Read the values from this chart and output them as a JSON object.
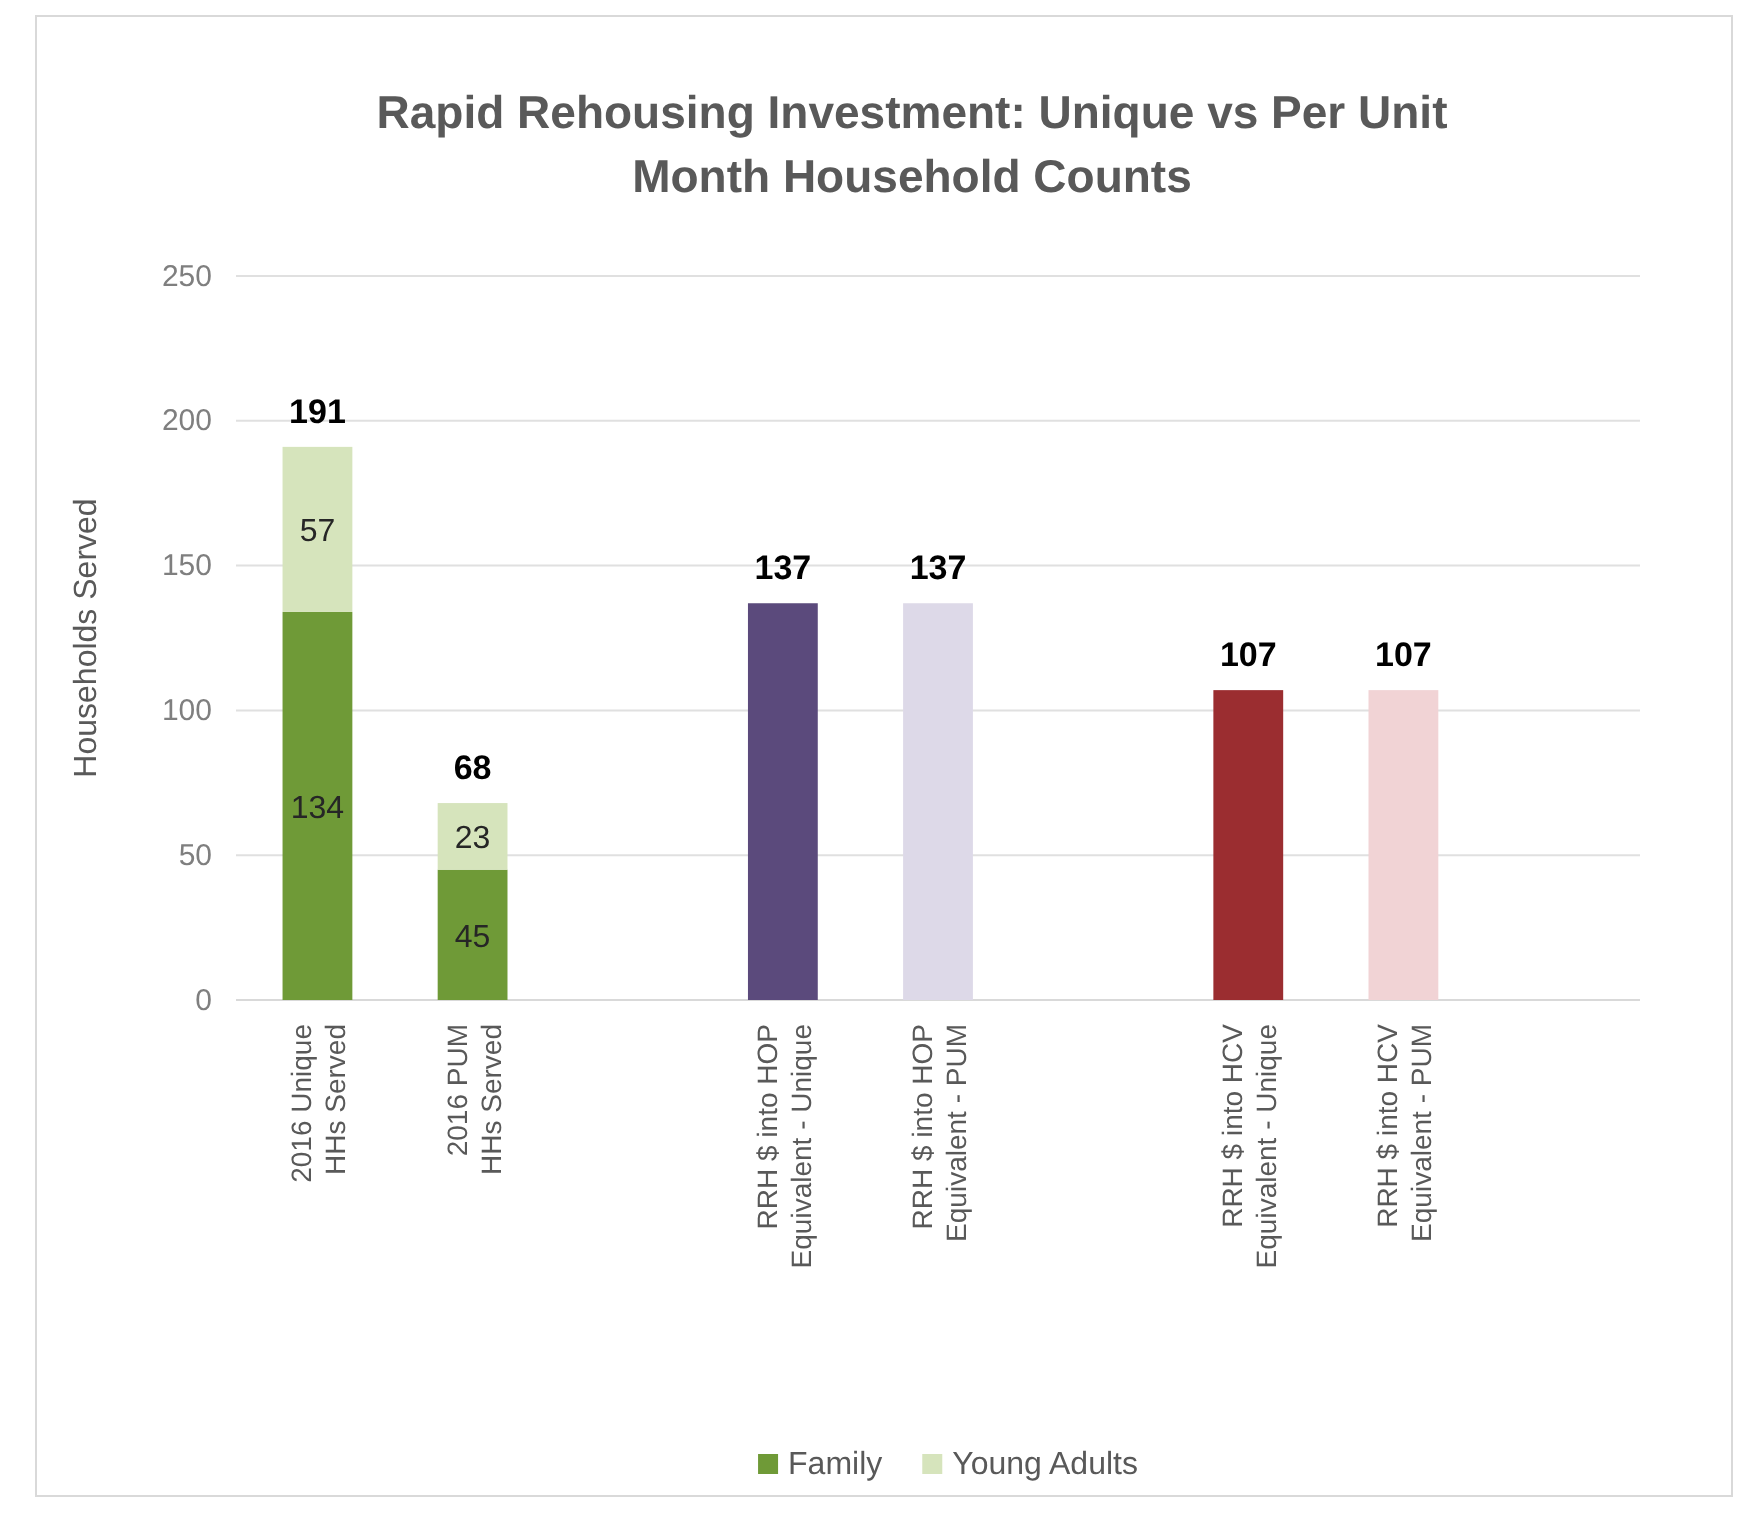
{
  "chart_data": {
    "type": "bar",
    "title": "Rapid Rehousing Investment: Unique vs Per Unit Month Household Counts",
    "ylabel": "Households Served",
    "categories": [
      "2016 Unique HHs Served",
      "2016 PUM HHs Served",
      null,
      "RRH $ into HOP Equivalent - Unique",
      "RRH $ into HOP Equivalent - PUM",
      null,
      "RRH $ into HCV Equivalent - Unique",
      "RRH $ into HCV Equivalent - PUM",
      null
    ],
    "stacked": true,
    "series": [
      {
        "name": "Family",
        "color": "#6f9a37",
        "colors": [
          "#6f9a37",
          "#6f9a37",
          null,
          "#5b4a7c",
          "#ddd9e8",
          null,
          "#9b2d30",
          "#f1d3d5",
          null
        ],
        "values": [
          134,
          45,
          null,
          137,
          137,
          null,
          107,
          107,
          null
        ],
        "value_labels": [
          "134",
          "45",
          null,
          null,
          null,
          null,
          null,
          null,
          null
        ]
      },
      {
        "name": "Young Adults",
        "color": "#d6e4bc",
        "values": [
          57,
          23,
          null,
          null,
          null,
          null,
          null,
          null,
          null
        ],
        "value_labels": [
          "57",
          "23",
          null,
          null,
          null,
          null,
          null,
          null,
          null
        ]
      }
    ],
    "totals": [
      "191",
      "68",
      null,
      "137",
      "137",
      null,
      "107",
      "107",
      null
    ],
    "ylim": [
      0,
      250
    ],
    "yticks": [
      0,
      50,
      100,
      150,
      200,
      250
    ],
    "grid": "y",
    "legend": "bottom"
  }
}
